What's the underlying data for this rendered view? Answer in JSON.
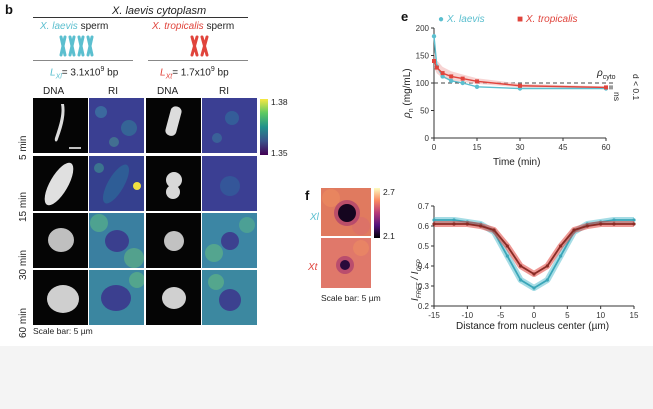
{
  "panel_b": {
    "letter": "b",
    "title": "X. laevis cytoplasm",
    "left_sperm": "X. laevis",
    "left_sperm_suffix": "sperm",
    "right_sperm": "X. tropicalis",
    "right_sperm_suffix": "sperm",
    "left_genome_sub": "Xl",
    "left_genome_val": "= 3.1x10",
    "left_genome_exp": "9",
    "left_genome_unit": " bp",
    "right_genome_sub": "Xt",
    "right_genome_val": "= 1.7x10",
    "right_genome_exp": "9",
    "right_genome_unit": " bp",
    "col_headers": [
      "DNA",
      "RI",
      "DNA",
      "RI"
    ],
    "rows": [
      "5 min",
      "15 min",
      "30 min",
      "60 min"
    ],
    "colorbar_max": "1.38",
    "colorbar_min": "1.35",
    "scale_bar": "Scale bar: 5 µm"
  },
  "panel_e": {
    "letter": "e",
    "legend_a": "X. laevis",
    "legend_b": "X. tropicalis",
    "ylabel_main": "ρ",
    "ylabel_sub": "n",
    "ylabel_unit": " (mg/mL)",
    "xlabel": "Time (min)",
    "rho_cyto_main": "ρ",
    "rho_cyto_sub": "cyto",
    "ns": "ns",
    "d_label": "d < 0.1",
    "y_ticks": [
      "0",
      "50",
      "100",
      "150",
      "200"
    ],
    "x_ticks": [
      "0",
      "15",
      "30",
      "45",
      "60"
    ]
  },
  "panel_f": {
    "letter": "f",
    "row_a": "Xl",
    "row_b": "Xt",
    "cbar_max": "2.7",
    "cbar_min": "2.1",
    "scale_bar": "Scale bar: 5 µm",
    "ylabel": "I",
    "ylabel_sub1": "FRET",
    "ylabel_mid": " / I",
    "ylabel_sub2": "CFP",
    "xlabel": "Distance from nucleus center (µm)",
    "y_ticks": [
      "0.2",
      "0.3",
      "0.4",
      "0.5",
      "0.6",
      "0.7"
    ],
    "x_ticks": [
      "-15",
      "-10",
      "-5",
      "0",
      "5",
      "10",
      "15"
    ]
  },
  "colors": {
    "laevis": "#5bbfcf",
    "tropicalis": "#e0443c",
    "ri_bg": "#3b3f93"
  },
  "chart_data": [
    {
      "type": "line",
      "title": "",
      "xlabel": "Time (min)",
      "ylabel": "ρn (mg/mL)",
      "xlim": [
        0,
        60
      ],
      "ylim": [
        0,
        200
      ],
      "reference_line": {
        "name": "ρcyto",
        "y": 100
      },
      "series": [
        {
          "name": "X. laevis",
          "x": [
            0,
            1,
            3,
            6,
            10,
            15,
            30,
            60
          ],
          "y": [
            185,
            130,
            112,
            104,
            100,
            93,
            90,
            90
          ]
        },
        {
          "name": "X. tropicalis",
          "x": [
            0,
            1,
            3,
            6,
            10,
            15,
            30,
            60
          ],
          "y": [
            140,
            128,
            118,
            112,
            108,
            103,
            95,
            92
          ]
        }
      ]
    },
    {
      "type": "line",
      "title": "",
      "xlabel": "Distance from nucleus center (µm)",
      "ylabel": "IFRET / ICFP",
      "xlim": [
        -15,
        15
      ],
      "ylim": [
        0.2,
        0.7
      ],
      "series": [
        {
          "name": "Xl",
          "x": [
            -15,
            -12,
            -10,
            -8,
            -6,
            -4,
            -2,
            0,
            2,
            4,
            6,
            8,
            10,
            12,
            15
          ],
          "y": [
            0.63,
            0.63,
            0.62,
            0.61,
            0.57,
            0.45,
            0.33,
            0.29,
            0.33,
            0.45,
            0.57,
            0.61,
            0.62,
            0.63,
            0.63
          ]
        },
        {
          "name": "Xt",
          "x": [
            -15,
            -12,
            -10,
            -8,
            -6,
            -4,
            -2,
            0,
            2,
            4,
            6,
            8,
            10,
            12,
            15
          ],
          "y": [
            0.61,
            0.61,
            0.61,
            0.6,
            0.58,
            0.5,
            0.4,
            0.36,
            0.4,
            0.5,
            0.58,
            0.6,
            0.61,
            0.61,
            0.61
          ]
        }
      ]
    }
  ]
}
